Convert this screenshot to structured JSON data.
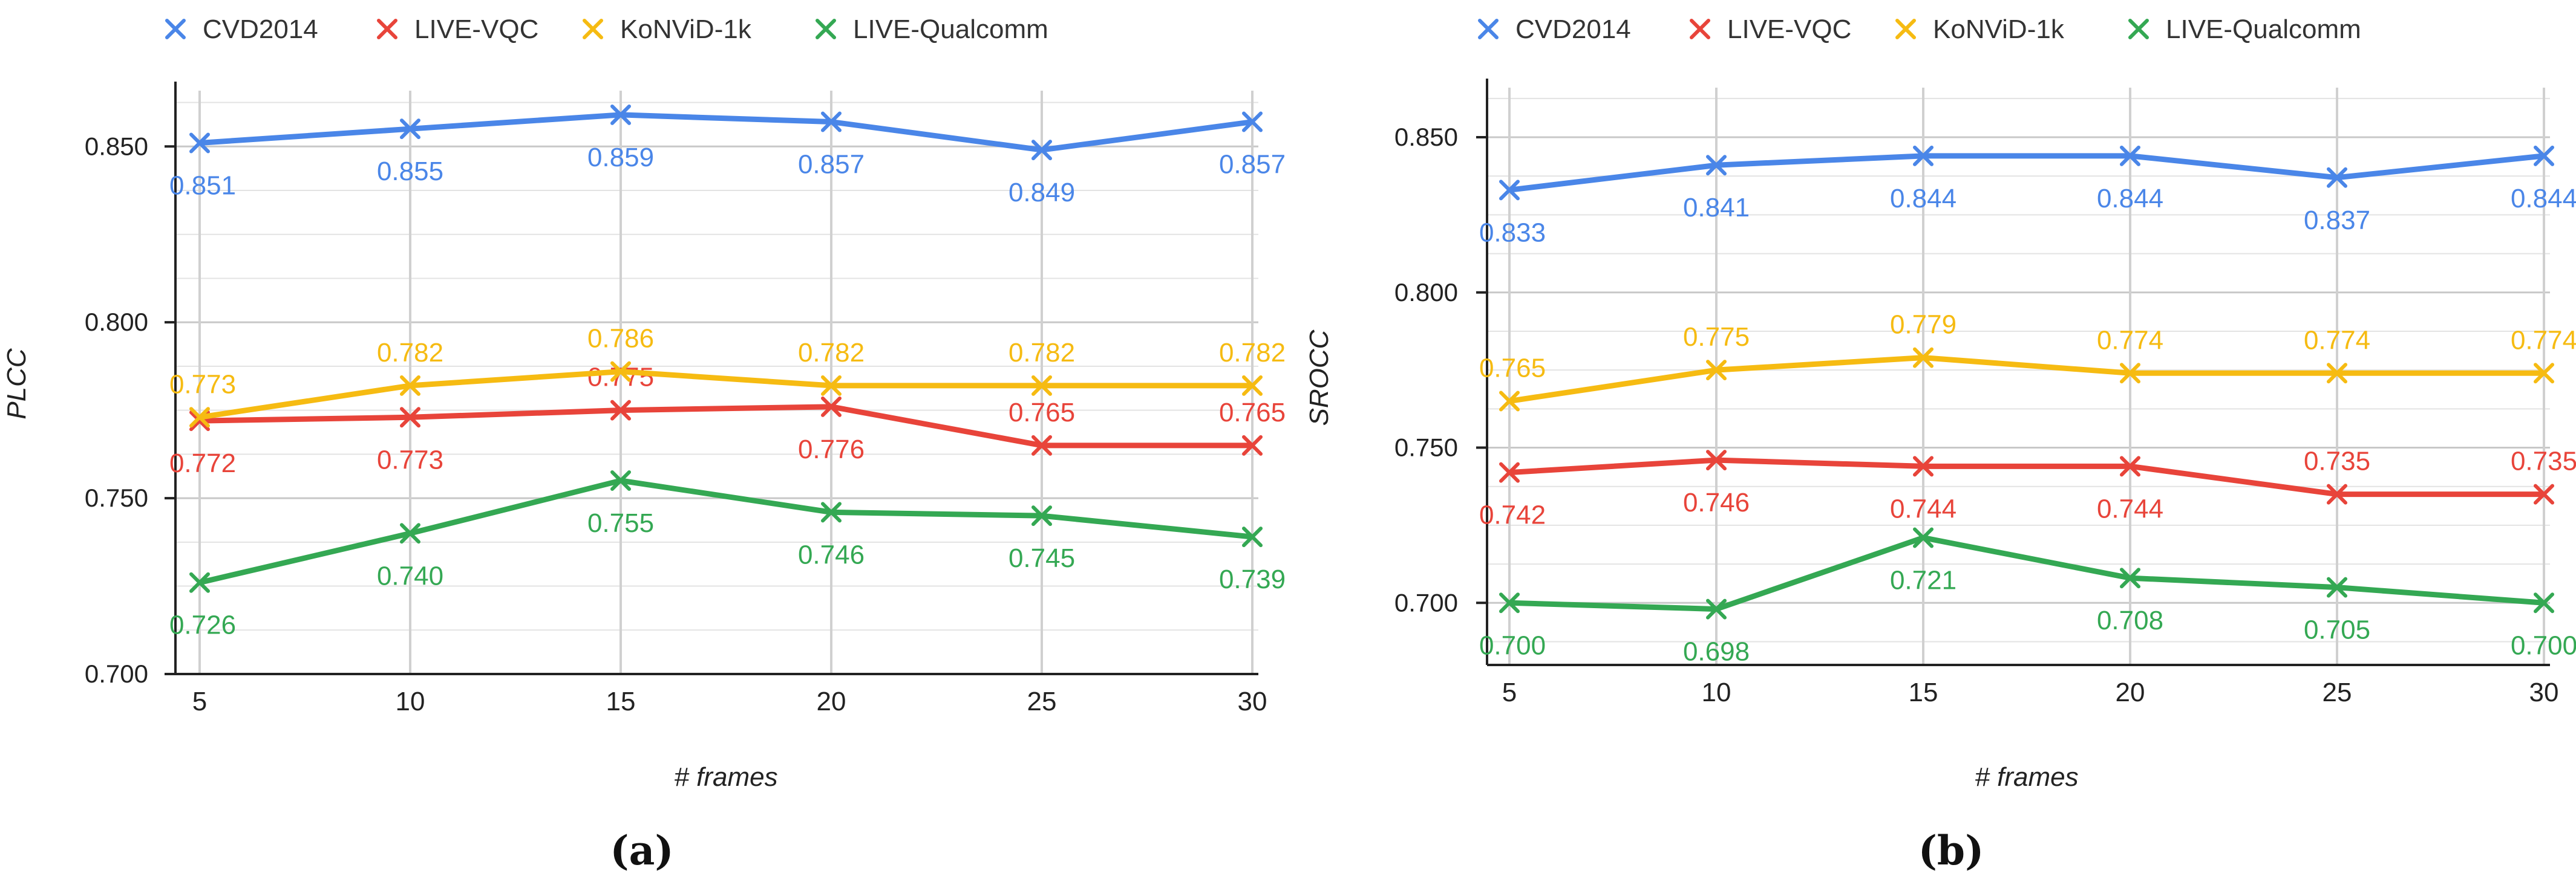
{
  "colors": {
    "CVD2014": "#4a86e8",
    "LIVE-VQC": "#e8443a",
    "KoNViD-1k": "#f6bb12",
    "LIVE-Qualcomm": "#34a853"
  },
  "chart_data": [
    {
      "type": "line",
      "panel_label": "(a)",
      "xlabel": "# frames",
      "ylabel": "PLCC",
      "x": [
        5,
        10,
        15,
        20,
        25,
        30
      ],
      "ylim": [
        0.7,
        0.865
      ],
      "yticks": [
        "0.700",
        "0.750",
        "0.800",
        "0.850"
      ],
      "ytick_values": [
        0.7,
        0.75,
        0.8,
        0.85
      ],
      "grid": true,
      "legend": "top",
      "series": [
        {
          "name": "CVD2014",
          "values": [
            0.851,
            0.855,
            0.859,
            0.857,
            0.849,
            0.857
          ],
          "labels": [
            "0.851",
            "0.855",
            "0.859",
            "0.857",
            "0.849",
            "0.857"
          ]
        },
        {
          "name": "LIVE-VQC",
          "values": [
            0.772,
            0.773,
            0.775,
            0.776,
            0.765,
            0.765
          ],
          "labels": [
            "0.772",
            "0.773",
            "0.775",
            "0.776",
            "0.765",
            "0.765"
          ]
        },
        {
          "name": "KoNViD-1k",
          "values": [
            0.773,
            0.782,
            0.786,
            0.782,
            0.782,
            0.782
          ],
          "labels": [
            "0.773",
            "0.782",
            "0.786",
            "0.782",
            "0.782",
            "0.782"
          ]
        },
        {
          "name": "LIVE-Qualcomm",
          "values": [
            0.726,
            0.74,
            0.755,
            0.746,
            0.745,
            0.739
          ],
          "labels": [
            "0.726",
            "0.740",
            "0.755",
            "0.746",
            "0.745",
            "0.739"
          ]
        }
      ]
    },
    {
      "type": "line",
      "panel_label": "(b)",
      "xlabel": "# frames",
      "ylabel": "SROCC",
      "x": [
        5,
        10,
        15,
        20,
        25,
        30
      ],
      "ylim": [
        0.68,
        0.865
      ],
      "yticks": [
        "0.700",
        "0.750",
        "0.800",
        "0.850"
      ],
      "ytick_values": [
        0.7,
        0.75,
        0.8,
        0.85
      ],
      "grid": true,
      "legend": "top",
      "series": [
        {
          "name": "CVD2014",
          "values": [
            0.833,
            0.841,
            0.844,
            0.844,
            0.837,
            0.844
          ],
          "labels": [
            "0.833",
            "0.841",
            "0.844",
            "0.844",
            "0.837",
            "0.844"
          ]
        },
        {
          "name": "LIVE-VQC",
          "values": [
            0.742,
            0.746,
            0.744,
            0.744,
            0.735,
            0.735
          ],
          "labels": [
            "0.742",
            "0.746",
            "0.744",
            "0.744",
            "0.735",
            "0.735"
          ]
        },
        {
          "name": "KoNViD-1k",
          "values": [
            0.765,
            0.775,
            0.779,
            0.774,
            0.774,
            0.774
          ],
          "labels": [
            "0.765",
            "0.775",
            "0.779",
            "0.774",
            "0.774",
            "0.774"
          ]
        },
        {
          "name": "LIVE-Qualcomm",
          "values": [
            0.7,
            0.698,
            0.721,
            0.708,
            0.705,
            0.7
          ],
          "labels": [
            "0.700",
            "0.698",
            "0.721",
            "0.708",
            "0.705",
            "0.700"
          ]
        }
      ]
    }
  ]
}
